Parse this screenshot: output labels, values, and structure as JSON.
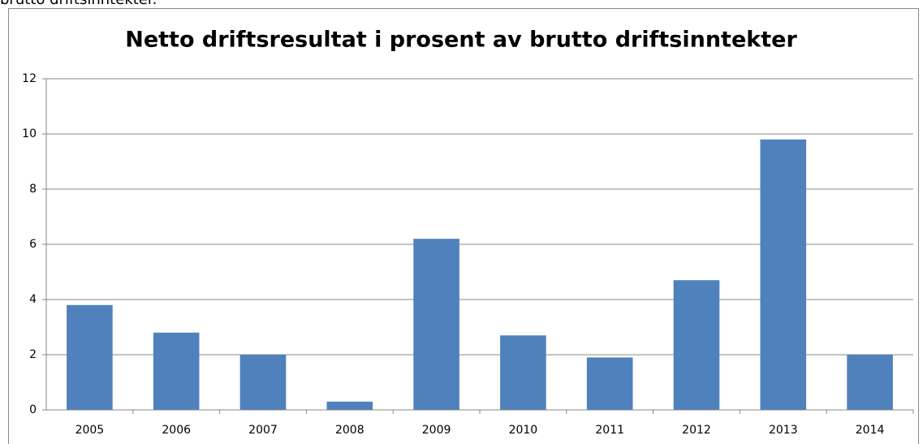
{
  "caption": "brutto driftsinntekter.",
  "chart_data": {
    "type": "bar",
    "title": "Netto driftsresultat i prosent av brutto driftsinntekter",
    "categories": [
      "2005",
      "2006",
      "2007",
      "2008",
      "2009",
      "2010",
      "2011",
      "2012",
      "2013",
      "2014"
    ],
    "values": [
      3.8,
      2.8,
      2.0,
      0.3,
      6.2,
      2.7,
      1.9,
      4.7,
      9.8,
      2.0
    ],
    "color": "#4f81bd",
    "ylim": [
      0,
      12
    ],
    "yticks": [
      0,
      2,
      4,
      6,
      8,
      10,
      12
    ],
    "grid": true
  }
}
